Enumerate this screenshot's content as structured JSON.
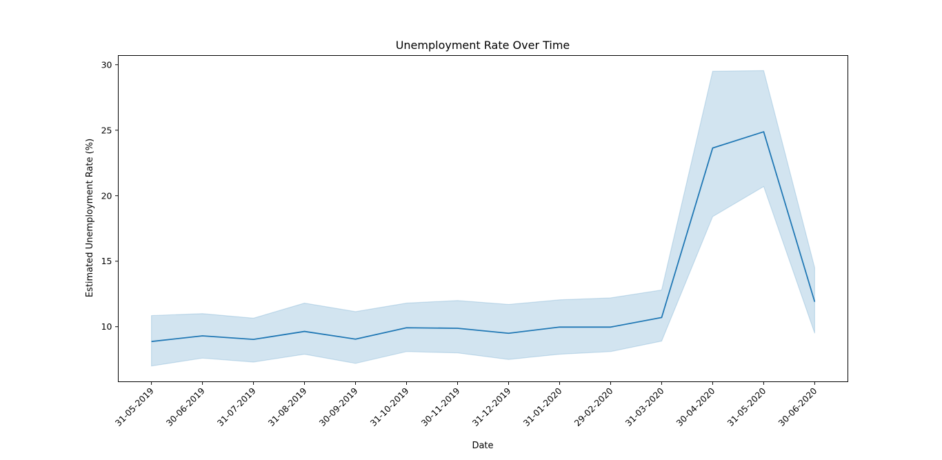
{
  "chart_data": {
    "type": "line",
    "title": "Unemployment Rate Over Time",
    "xlabel": "Date",
    "ylabel": "Estimated Unemployment Rate (%)",
    "categories": [
      "31-05-2019",
      "30-06-2019",
      "31-07-2019",
      "31-08-2019",
      "30-09-2019",
      "31-10-2019",
      "30-11-2019",
      "31-12-2019",
      "31-01-2020",
      "29-02-2020",
      "31-03-2020",
      "30-04-2020",
      "31-05-2020",
      "30-06-2020"
    ],
    "series": [
      {
        "values": [
          8.87,
          9.3,
          9.03,
          9.64,
          9.05,
          9.92,
          9.88,
          9.5,
          9.97,
          9.97,
          10.7,
          23.64,
          24.88,
          11.9
        ],
        "ci_lower": [
          7.0,
          7.6,
          7.3,
          7.9,
          7.2,
          8.1,
          8.0,
          7.5,
          7.9,
          8.1,
          8.9,
          18.4,
          20.7,
          9.5
        ],
        "ci_upper": [
          10.85,
          11.0,
          10.65,
          11.8,
          11.15,
          11.8,
          12.0,
          11.7,
          12.05,
          12.2,
          12.8,
          29.5,
          29.55,
          14.5
        ]
      }
    ],
    "ylim": [
      5.8,
      30.7
    ],
    "yticks": [
      10,
      15,
      20,
      25,
      30
    ],
    "grid": false,
    "legend": "none",
    "colors": {
      "line": "#1f77b4",
      "band": "#1f77b4"
    }
  }
}
